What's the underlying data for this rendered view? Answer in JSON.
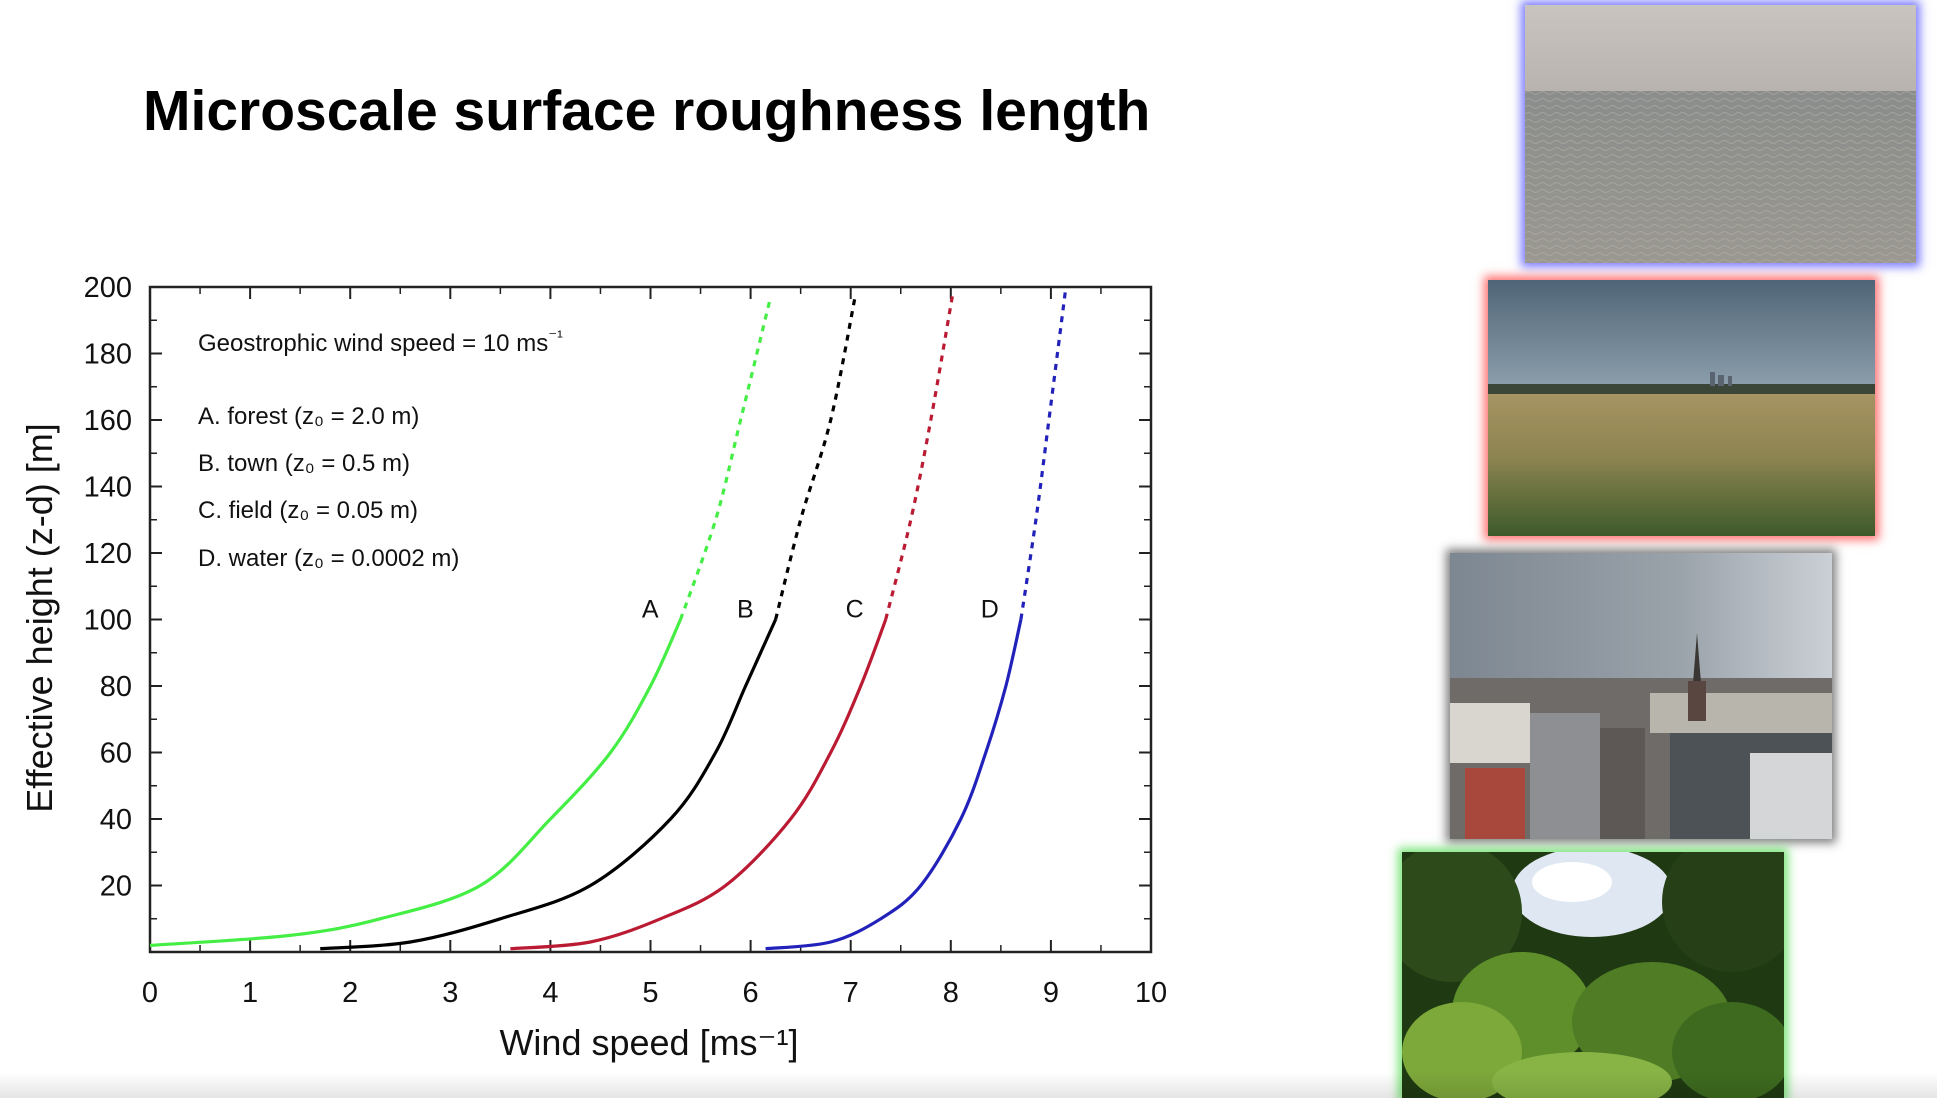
{
  "slide": {
    "title": "Microscale surface roughness length"
  },
  "chart_data": {
    "type": "line",
    "title": "",
    "xlabel": "Wind speed [ms⁻¹]",
    "ylabel": "Effective height (z-d) [m]",
    "xlim": [
      0,
      10
    ],
    "ylim": [
      0,
      200
    ],
    "x_ticks": [
      "0",
      "1",
      "2",
      "3",
      "4",
      "5",
      "6",
      "7",
      "8",
      "9",
      "10"
    ],
    "y_ticks": [
      "20",
      "40",
      "60",
      "80",
      "100",
      "120",
      "140",
      "160",
      "180",
      "200"
    ],
    "grid": false,
    "annotations": {
      "geostrophic": "Geostrophic wind speed = 10 ms⁻¹",
      "legend_lines": [
        "A. forest (z₀ = 2.0 m)",
        "B. town (z₀ = 0.5 m)",
        "C. field (z₀ = 0.05 m)",
        "D. water (z₀ = 0.0002 m)"
      ]
    },
    "solid_up_to_height": 100,
    "series": [
      {
        "name": "A",
        "color": "#44ee44",
        "points": [
          [
            0.0,
            2
          ],
          [
            1.4,
            5
          ],
          [
            2.3,
            10
          ],
          [
            3.3,
            20
          ],
          [
            4.0,
            40
          ],
          [
            4.6,
            60
          ],
          [
            5.0,
            80
          ],
          [
            5.3,
            100
          ],
          [
            5.65,
            130
          ],
          [
            5.9,
            160
          ],
          [
            6.2,
            197
          ]
        ]
      },
      {
        "name": "B",
        "color": "#000000",
        "points": [
          [
            1.7,
            1
          ],
          [
            2.6,
            3
          ],
          [
            3.5,
            10
          ],
          [
            4.4,
            20
          ],
          [
            5.2,
            40
          ],
          [
            5.65,
            60
          ],
          [
            5.95,
            80
          ],
          [
            6.25,
            100
          ],
          [
            6.5,
            130
          ],
          [
            6.8,
            160
          ],
          [
            7.05,
            198
          ]
        ]
      },
      {
        "name": "C",
        "color": "#bb1a33",
        "points": [
          [
            3.6,
            1
          ],
          [
            4.4,
            3
          ],
          [
            5.1,
            10
          ],
          [
            5.75,
            20
          ],
          [
            6.4,
            40
          ],
          [
            6.8,
            60
          ],
          [
            7.1,
            80
          ],
          [
            7.35,
            100
          ],
          [
            7.6,
            130
          ],
          [
            7.8,
            160
          ],
          [
            8.02,
            198
          ]
        ]
      },
      {
        "name": "D",
        "color": "#2222bb",
        "points": [
          [
            6.15,
            1
          ],
          [
            6.8,
            3
          ],
          [
            7.3,
            10
          ],
          [
            7.7,
            20
          ],
          [
            8.1,
            40
          ],
          [
            8.35,
            60
          ],
          [
            8.55,
            80
          ],
          [
            8.7,
            100
          ],
          [
            8.85,
            130
          ],
          [
            8.98,
            160
          ],
          [
            9.15,
            200
          ]
        ]
      }
    ]
  },
  "photos": [
    {
      "label": "water",
      "glow": "#5050ff"
    },
    {
      "label": "field",
      "glow": "#ff4646"
    },
    {
      "label": "town",
      "glow": "#3c3c3c"
    },
    {
      "label": "forest",
      "glow": "#50dc50"
    }
  ]
}
